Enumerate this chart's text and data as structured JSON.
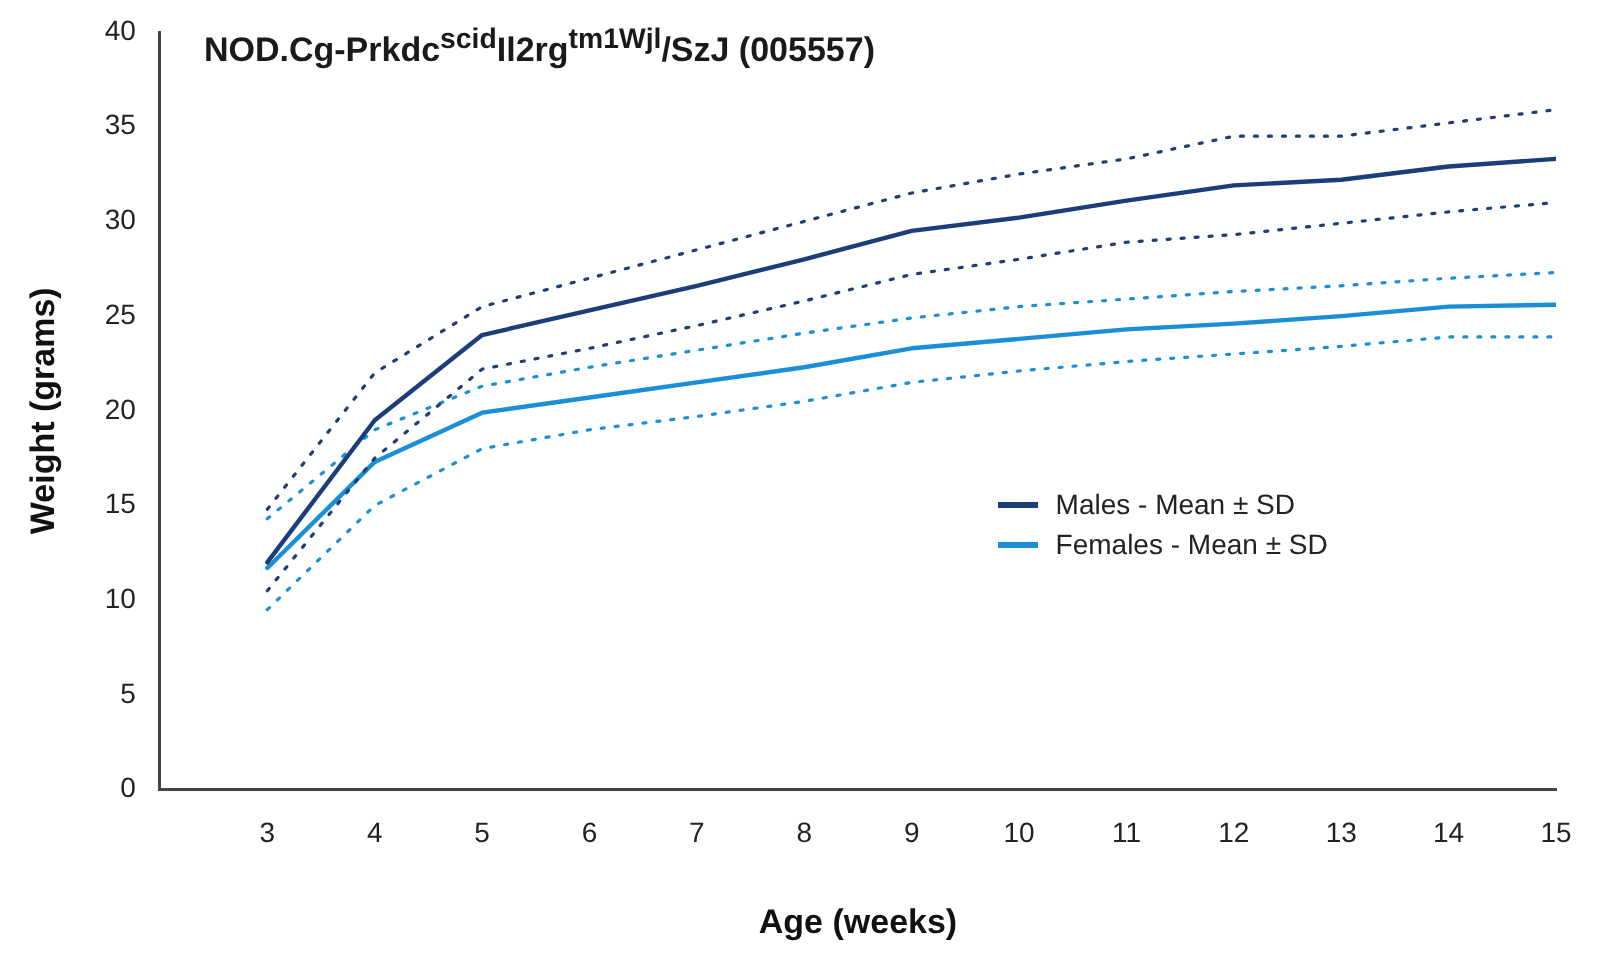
{
  "chart_data": {
    "type": "line",
    "title": "NOD.Cg-Prkdc$^{scid}$Il2rg$^{tm1Wjl}$/SzJ (005557)",
    "xlabel": "Age (weeks)",
    "ylabel": "Weight (grams)",
    "x": [
      3,
      4,
      5,
      6,
      7,
      8,
      9,
      10,
      11,
      12,
      13,
      14,
      15
    ],
    "series": [
      {
        "name": "Males - Mean ± SD",
        "color": "#1b3e7a",
        "values": [
          12,
          19.5,
          24,
          25.3,
          26.6,
          28,
          29.5,
          30.2,
          31.1,
          31.9,
          32.2,
          32.9,
          33.3
        ]
      },
      {
        "color": "#1b3e7a",
        "line_style": "dotted",
        "values": [
          10.5,
          17.5,
          22.2,
          23.3,
          24.5,
          25.8,
          27.2,
          28,
          28.9,
          29.3,
          29.9,
          30.5,
          31
        ]
      },
      {
        "color": "#1b3e7a",
        "line_style": "dotted",
        "values": [
          14.8,
          22,
          25.5,
          27,
          28.5,
          30,
          31.5,
          32.5,
          33.3,
          34.5,
          34.5,
          35.2,
          35.9
        ]
      },
      {
        "name": "Females - Mean ± SD",
        "color": "#1a8fd6",
        "values": [
          11.7,
          17.3,
          19.9,
          20.7,
          21.5,
          22.3,
          23.3,
          23.8,
          24.3,
          24.6,
          25,
          25.5,
          25.6
        ]
      },
      {
        "color": "#1a8fd6",
        "line_style": "dotted",
        "values": [
          9.5,
          15,
          18,
          19,
          19.7,
          20.5,
          21.5,
          22.1,
          22.6,
          23,
          23.4,
          23.9,
          23.9
        ]
      },
      {
        "color": "#1a8fd6",
        "line_style": "dotted",
        "values": [
          14.3,
          19,
          21.3,
          22.3,
          23.2,
          24.1,
          24.9,
          25.5,
          25.9,
          26.3,
          26.6,
          27,
          27.3
        ]
      }
    ],
    "xlim": [
      2,
      15
    ],
    "xticks": [
      3,
      4,
      5,
      6,
      7,
      8,
      9,
      10,
      11,
      12,
      13,
      14,
      15
    ],
    "ylim": [
      0,
      40
    ],
    "yticks": [
      0,
      5,
      10,
      15,
      20,
      25,
      30,
      35,
      40
    ],
    "grid": false,
    "legend": "right",
    "marker": "none",
    "line_style": "solid"
  }
}
